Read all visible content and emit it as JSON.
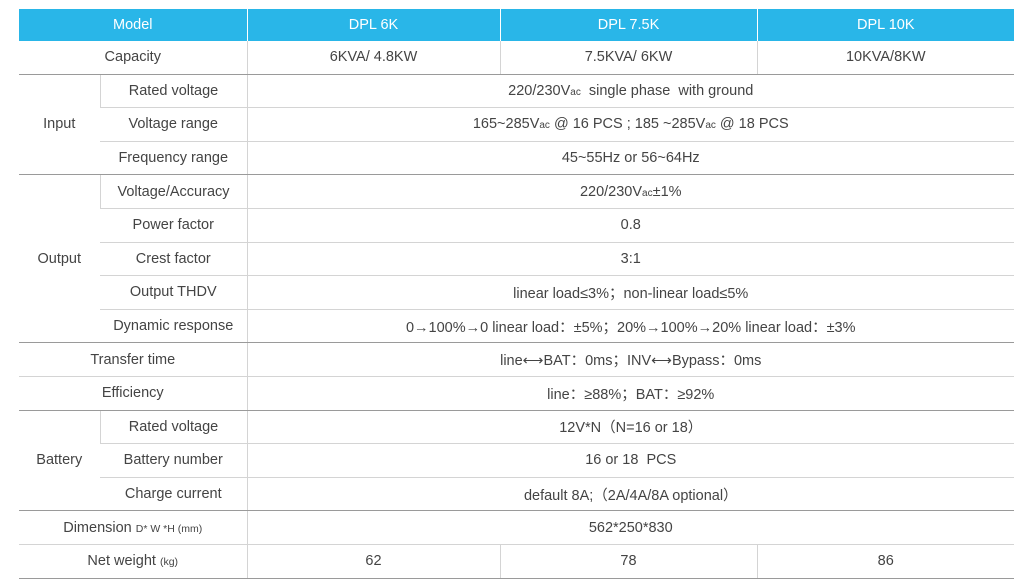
{
  "header": {
    "model_label": "Model",
    "models": [
      "DPL 6K",
      "DPL 7.5K",
      "DPL 10K"
    ]
  },
  "capacity": {
    "label": "Capacity",
    "values": [
      "6KVA/ 4.8KW",
      "7.5KVA/ 6KW",
      "10KVA/8KW"
    ]
  },
  "input": {
    "label": "Input",
    "rated_voltage": {
      "label": "Rated voltage",
      "value_a": "220/230V",
      "value_sub": "ac",
      "value_b": "  single phase  with ground"
    },
    "voltage_range": {
      "label": "Voltage range",
      "p1": "165~285V",
      "s1": "ac",
      "p2": " @ 16 PCS ; 185 ~285V",
      "s2": "ac",
      "p3": " @ 18 PCS"
    },
    "frequency_range": {
      "label": "Frequency range",
      "value": "45~55Hz or 56~64Hz"
    }
  },
  "output": {
    "label": "Output",
    "voltage_accuracy": {
      "label": "Voltage/Accuracy",
      "value_a": "220/230V",
      "value_sub": "ac",
      "value_b": "±1%"
    },
    "power_factor": {
      "label": "Power factor",
      "value": "0.8"
    },
    "crest_factor": {
      "label": "Crest factor",
      "value": "3:1"
    },
    "thdv": {
      "label": "Output THDV",
      "value": "linear load≤3%；non-linear load≤5%"
    },
    "dynamic_response": {
      "label": "Dynamic response",
      "value": "0→100%→0 linear load：±5%；20%→100%→20% linear load：±3%"
    }
  },
  "transfer_time": {
    "label": "Transfer time",
    "value": "line⟷BAT：0ms；INV⟷Bypass：0ms"
  },
  "efficiency": {
    "label": "Efficiency",
    "value": "line：≥88%；BAT：≥92%"
  },
  "battery": {
    "label": "Battery",
    "rated_voltage": {
      "label": "Rated voltage",
      "value": "12V*N（N=16 or 18）"
    },
    "battery_number": {
      "label": "Battery number",
      "value": "16 or 18  PCS"
    },
    "charge_current": {
      "label": "Charge current",
      "value": "default 8A;（2A/4A/8A optional）"
    }
  },
  "dimension": {
    "label": "Dimension",
    "unit": "D* W *H (mm)",
    "value": "562*250*830"
  },
  "net_weight": {
    "label": "Net weight",
    "unit": "(kg)",
    "values": [
      "62",
      "78",
      "86"
    ]
  }
}
